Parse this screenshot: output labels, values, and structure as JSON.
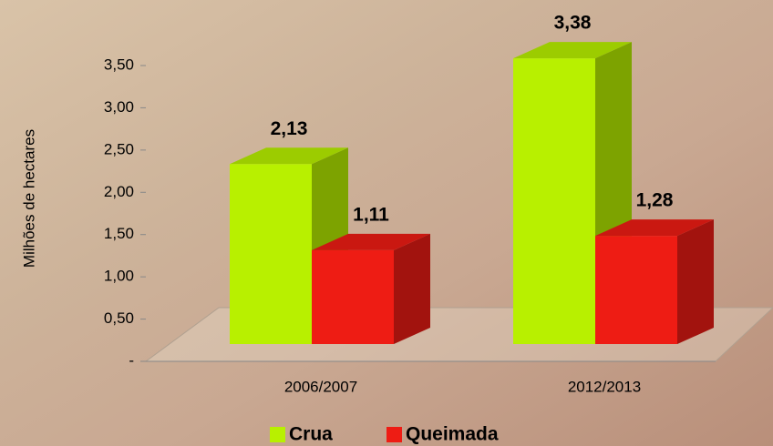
{
  "chart_data": {
    "type": "bar3d",
    "y_label": "Milhões de hectares",
    "categories": [
      "2006/2007",
      "2012/2013"
    ],
    "series": [
      {
        "name": "Crua",
        "color": "#b8f000",
        "values": [
          2.13,
          3.38
        ],
        "value_labels": [
          "2,13",
          "3,38"
        ]
      },
      {
        "name": "Queimada",
        "color": "#ee1c14",
        "values": [
          1.11,
          1.28
        ],
        "value_labels": [
          "1,11",
          "1,28"
        ]
      }
    ],
    "ylim": [
      0,
      3.5
    ],
    "yticks": [
      {
        "value": 0,
        "label": "-"
      },
      {
        "value": 0.5,
        "label": "0,50"
      },
      {
        "value": 1,
        "label": "1,00"
      },
      {
        "value": 1.5,
        "label": "1,50"
      },
      {
        "value": 2,
        "label": "2,00"
      },
      {
        "value": 2.5,
        "label": "2,50"
      },
      {
        "value": 3,
        "label": "3,00"
      },
      {
        "value": 3.5,
        "label": "3,50"
      }
    ],
    "legend": "bottom"
  }
}
